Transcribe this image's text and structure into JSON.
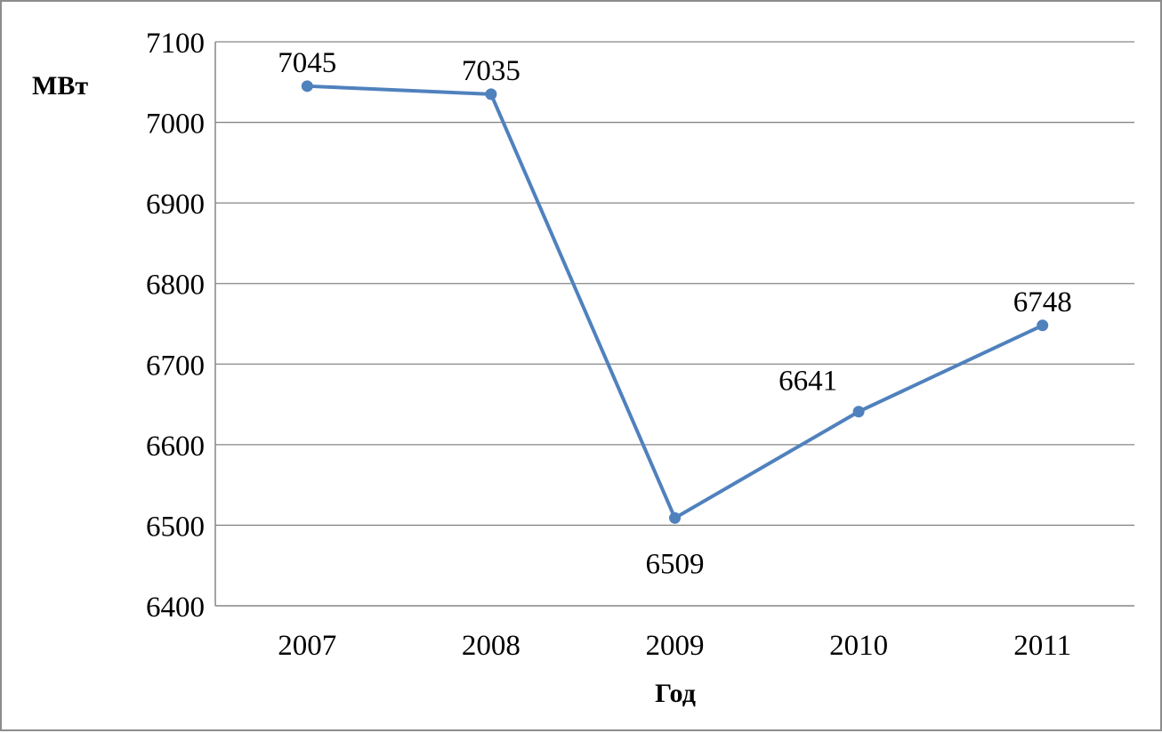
{
  "chart_data": {
    "type": "line",
    "title": "",
    "xlabel": "Год",
    "ylabel": "МВт",
    "categories": [
      "2007",
      "2008",
      "2009",
      "2010",
      "2011"
    ],
    "series": [
      {
        "values": [
          7045,
          7035,
          6509,
          6641,
          6748
        ],
        "color": "#4f81bd"
      }
    ],
    "ylim": [
      6400,
      7100
    ],
    "yticks": [
      6400,
      6500,
      6600,
      6700,
      6800,
      6900,
      7000,
      7100
    ],
    "grid": true,
    "legend": "none",
    "data_label_positions": [
      "above",
      "above",
      "below",
      "above-left",
      "above"
    ]
  }
}
